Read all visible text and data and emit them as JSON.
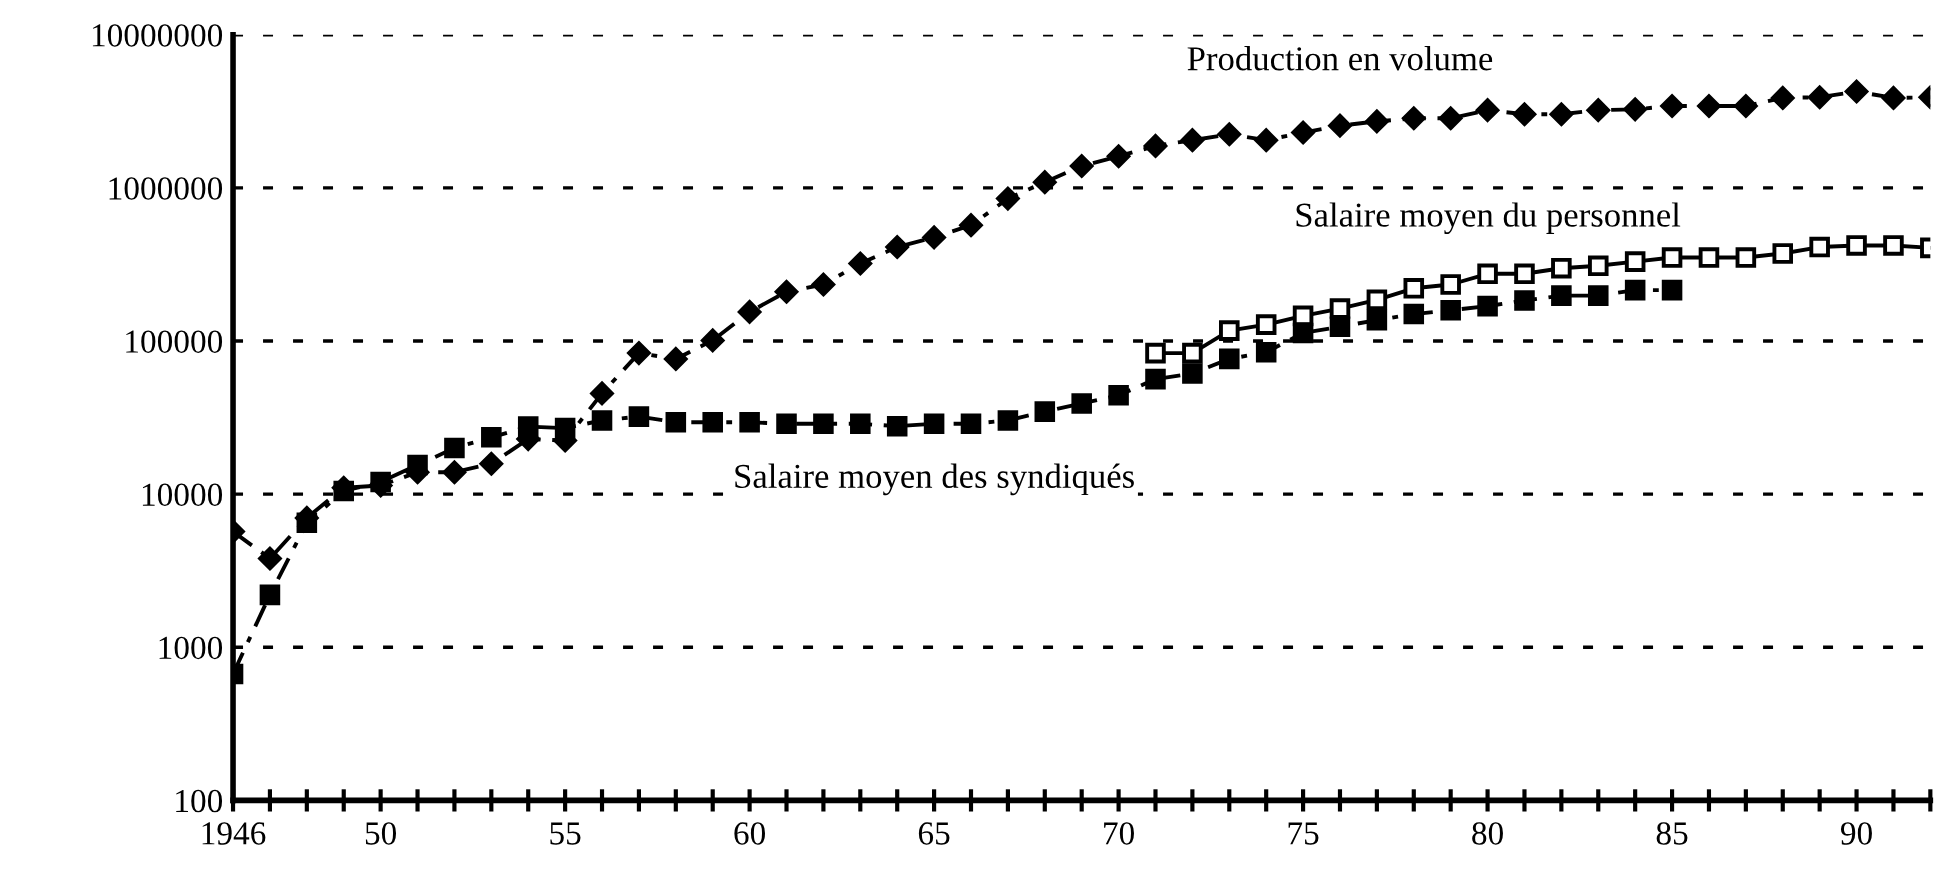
{
  "chart_data": {
    "type": "line",
    "log": "y",
    "grid": "y",
    "xlim": [
      1946,
      1992
    ],
    "ylim": [
      100,
      10000000
    ],
    "yticks": [
      {
        "value": 100,
        "label": "100"
      },
      {
        "value": 1000,
        "label": "1000"
      },
      {
        "value": 10000,
        "label": "10000"
      },
      {
        "value": 100000,
        "label": "100000"
      },
      {
        "value": 1000000,
        "label": "1000000"
      },
      {
        "value": 10000000,
        "label": "10000000"
      }
    ],
    "xticks": [
      {
        "value": 1946,
        "label": "1946"
      },
      {
        "value": 1947,
        "label": null
      },
      {
        "value": 1948,
        "label": null
      },
      {
        "value": 1949,
        "label": null
      },
      {
        "value": 1950,
        "label": "50"
      },
      {
        "value": 1951,
        "label": null
      },
      {
        "value": 1952,
        "label": null
      },
      {
        "value": 1953,
        "label": null
      },
      {
        "value": 1954,
        "label": null
      },
      {
        "value": 1955,
        "label": "55"
      },
      {
        "value": 1956,
        "label": null
      },
      {
        "value": 1957,
        "label": null
      },
      {
        "value": 1958,
        "label": null
      },
      {
        "value": 1959,
        "label": null
      },
      {
        "value": 1960,
        "label": "60"
      },
      {
        "value": 1961,
        "label": null
      },
      {
        "value": 1962,
        "label": null
      },
      {
        "value": 1963,
        "label": null
      },
      {
        "value": 1964,
        "label": null
      },
      {
        "value": 1965,
        "label": "65"
      },
      {
        "value": 1966,
        "label": null
      },
      {
        "value": 1967,
        "label": null
      },
      {
        "value": 1968,
        "label": null
      },
      {
        "value": 1969,
        "label": null
      },
      {
        "value": 1970,
        "label": "70"
      },
      {
        "value": 1971,
        "label": null
      },
      {
        "value": 1972,
        "label": null
      },
      {
        "value": 1973,
        "label": null
      },
      {
        "value": 1974,
        "label": null
      },
      {
        "value": 1975,
        "label": "75"
      },
      {
        "value": 1976,
        "label": null
      },
      {
        "value": 1977,
        "label": null
      },
      {
        "value": 1978,
        "label": null
      },
      {
        "value": 1979,
        "label": null
      },
      {
        "value": 1980,
        "label": "80"
      },
      {
        "value": 1981,
        "label": null
      },
      {
        "value": 1982,
        "label": null
      },
      {
        "value": 1983,
        "label": null
      },
      {
        "value": 1984,
        "label": null
      },
      {
        "value": 1985,
        "label": "85"
      },
      {
        "value": 1986,
        "label": null
      },
      {
        "value": 1987,
        "label": null
      },
      {
        "value": 1988,
        "label": null
      },
      {
        "value": 1989,
        "label": null
      },
      {
        "value": 1990,
        "label": "90"
      },
      {
        "value": 1991,
        "label": null
      },
      {
        "value": 1992,
        "label": null
      }
    ],
    "series": [
      {
        "name": "Production en volume",
        "color": "#000000",
        "marker": "diamond",
        "line_style": "dashed",
        "x": [
          1946,
          1947,
          1948,
          1949,
          1950,
          1951,
          1952,
          1953,
          1954,
          1955,
          1956,
          1957,
          1958,
          1959,
          1960,
          1961,
          1962,
          1963,
          1964,
          1965,
          1966,
          1967,
          1968,
          1969,
          1970,
          1971,
          1972,
          1973,
          1974,
          1975,
          1976,
          1977,
          1978,
          1979,
          1980,
          1981,
          1982,
          1983,
          1984,
          1985,
          1986,
          1987,
          1988,
          1989,
          1990,
          1991,
          1992
        ],
        "values": [
          5700,
          3800,
          7000,
          11000,
          11400,
          13900,
          13900,
          15800,
          22900,
          22400,
          45500,
          83400,
          76400,
          101000,
          155000,
          210000,
          234000,
          321000,
          411000,
          475000,
          571000,
          852000,
          1090000,
          1390000,
          1610000,
          1880000,
          2050000,
          2240000,
          2050000,
          2300000,
          2550000,
          2720000,
          2850000,
          2850000,
          3220000,
          3030000,
          3030000,
          3220000,
          3260000,
          3430000,
          3430000,
          3430000,
          3870000,
          3910000,
          4260000,
          3870000,
          3910000
        ]
      },
      {
        "name": "Salaire moyen des syndiqués",
        "color": "#000000",
        "marker": "square",
        "line_style": "dashed",
        "x": [
          1946,
          1947,
          1948,
          1949,
          1950,
          1951,
          1952,
          1953,
          1954,
          1955,
          1956,
          1957,
          1958,
          1959,
          1960,
          1961,
          1962,
          1963,
          1964,
          1965,
          1966,
          1967,
          1968,
          1969,
          1970,
          1971,
          1972,
          1973,
          1974,
          1975,
          1976,
          1977,
          1978,
          1979,
          1980,
          1981,
          1982,
          1983,
          1984,
          1985
        ],
        "values": [
          670,
          2200,
          6500,
          10500,
          12000,
          15500,
          20000,
          23500,
          27600,
          27000,
          30300,
          32100,
          29500,
          29500,
          29500,
          28800,
          28800,
          28800,
          27800,
          28800,
          28800,
          30300,
          34600,
          39100,
          44200,
          56400,
          61300,
          76500,
          84400,
          113000,
          124000,
          137000,
          150000,
          159000,
          169000,
          184000,
          198000,
          198000,
          215000,
          215000
        ]
      },
      {
        "name": "Salaire moyen du personnel",
        "color": "#ffffff",
        "marker": "square",
        "line_style": "solid",
        "x": [
          1971,
          1972,
          1973,
          1974,
          1975,
          1976,
          1977,
          1978,
          1979,
          1980,
          1981,
          1982,
          1983,
          1984,
          1985,
          1986,
          1987,
          1988,
          1989,
          1990,
          1991,
          1992
        ],
        "values": [
          83400,
          83400,
          117000,
          128000,
          146000,
          163000,
          186000,
          221000,
          234000,
          275000,
          275000,
          299000,
          310000,
          330000,
          351000,
          351000,
          351000,
          373000,
          411000,
          421000,
          421000,
          406000
        ]
      }
    ]
  }
}
